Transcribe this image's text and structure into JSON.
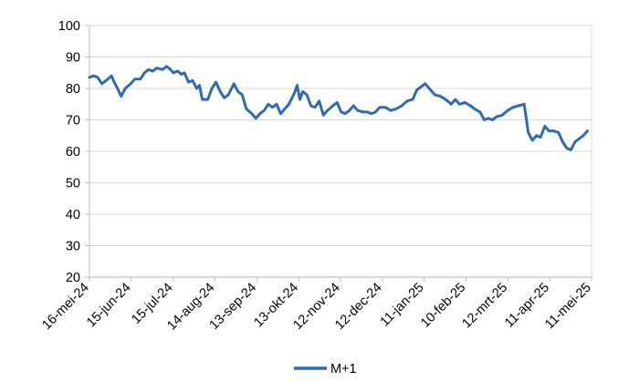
{
  "chart_data": {
    "type": "line",
    "title": "",
    "xlabel": "",
    "ylabel": "",
    "ylim": [
      20,
      100
    ],
    "yticks": [
      20,
      30,
      40,
      50,
      60,
      70,
      80,
      90,
      100
    ],
    "grid": "horizontal",
    "legend_position": "bottom",
    "colors": {
      "series": "#2e6bb0",
      "grid": "#d9d9d9",
      "axis": "#bfbfbf"
    },
    "x_tick_labels": [
      "16-mei-24",
      "15-jun-24",
      "15-jul-24",
      "14-aug-24",
      "13-sep-24",
      "13-okt-24",
      "12-nov-24",
      "12-dec-24",
      "11-jan-25",
      "10-feb-25",
      "12-mrt-25",
      "11-apr-25",
      "11-mei-25"
    ],
    "x_range": [
      "2024-05-16",
      "2025-05-16"
    ],
    "series": [
      {
        "name": "M+1",
        "points": [
          [
            "2024-05-16",
            83.5
          ],
          [
            "2024-05-19",
            84.0
          ],
          [
            "2024-05-22",
            83.5
          ],
          [
            "2024-05-25",
            81.5
          ],
          [
            "2024-05-28",
            82.5
          ],
          [
            "2024-06-01",
            84.0
          ],
          [
            "2024-06-03",
            82.0
          ],
          [
            "2024-06-06",
            79.5
          ],
          [
            "2024-06-08",
            77.5
          ],
          [
            "2024-06-11",
            80.0
          ],
          [
            "2024-06-15",
            81.5
          ],
          [
            "2024-06-18",
            83.0
          ],
          [
            "2024-06-22",
            83.0
          ],
          [
            "2024-06-25",
            85.0
          ],
          [
            "2024-06-28",
            86.0
          ],
          [
            "2024-07-01",
            85.5
          ],
          [
            "2024-07-04",
            86.5
          ],
          [
            "2024-07-08",
            86.0
          ],
          [
            "2024-07-11",
            87.0
          ],
          [
            "2024-07-14",
            86.0
          ],
          [
            "2024-07-16",
            85.0
          ],
          [
            "2024-07-19",
            85.5
          ],
          [
            "2024-07-22",
            84.5
          ],
          [
            "2024-07-24",
            85.0
          ],
          [
            "2024-07-27",
            82.0
          ],
          [
            "2024-07-30",
            82.5
          ],
          [
            "2024-08-02",
            80.0
          ],
          [
            "2024-08-04",
            81.0
          ],
          [
            "2024-08-06",
            76.5
          ],
          [
            "2024-08-10",
            76.5
          ],
          [
            "2024-08-13",
            80.0
          ],
          [
            "2024-08-16",
            82.0
          ],
          [
            "2024-08-19",
            79.0
          ],
          [
            "2024-08-22",
            77.0
          ],
          [
            "2024-08-25",
            78.0
          ],
          [
            "2024-08-29",
            81.5
          ],
          [
            "2024-09-01",
            79.0
          ],
          [
            "2024-09-04",
            78.0
          ],
          [
            "2024-09-07",
            73.5
          ],
          [
            "2024-09-11",
            72.0
          ],
          [
            "2024-09-14",
            70.5
          ],
          [
            "2024-09-17",
            72.0
          ],
          [
            "2024-09-20",
            73.0
          ],
          [
            "2024-09-23",
            75.0
          ],
          [
            "2024-09-26",
            74.0
          ],
          [
            "2024-09-29",
            75.0
          ],
          [
            "2024-10-02",
            72.0
          ],
          [
            "2024-10-05",
            73.5
          ],
          [
            "2024-10-08",
            75.0
          ],
          [
            "2024-10-12",
            78.5
          ],
          [
            "2024-10-14",
            81.0
          ],
          [
            "2024-10-16",
            76.5
          ],
          [
            "2024-10-18",
            79.0
          ],
          [
            "2024-10-21",
            78.0
          ],
          [
            "2024-10-24",
            74.5
          ],
          [
            "2024-10-27",
            74.0
          ],
          [
            "2024-10-30",
            76.0
          ],
          [
            "2024-11-02",
            71.5
          ],
          [
            "2024-11-05",
            73.0
          ],
          [
            "2024-11-09",
            74.5
          ],
          [
            "2024-11-12",
            75.5
          ],
          [
            "2024-11-15",
            72.5
          ],
          [
            "2024-11-18",
            72.0
          ],
          [
            "2024-11-21",
            73.0
          ],
          [
            "2024-11-24",
            74.5
          ],
          [
            "2024-11-27",
            73.0
          ],
          [
            "2024-12-01",
            72.5
          ],
          [
            "2024-12-04",
            72.5
          ],
          [
            "2024-12-07",
            72.0
          ],
          [
            "2024-12-10",
            72.5
          ],
          [
            "2024-12-13",
            74.0
          ],
          [
            "2024-12-17",
            74.0
          ],
          [
            "2024-12-21",
            73.0
          ],
          [
            "2024-12-25",
            73.5
          ],
          [
            "2024-12-29",
            74.5
          ],
          [
            "2025-01-02",
            76.0
          ],
          [
            "2025-01-06",
            76.5
          ],
          [
            "2025-01-09",
            79.5
          ],
          [
            "2025-01-12",
            80.5
          ],
          [
            "2025-01-15",
            81.5
          ],
          [
            "2025-01-18",
            80.0
          ],
          [
            "2025-01-22",
            78.0
          ],
          [
            "2025-01-26",
            77.5
          ],
          [
            "2025-01-30",
            76.5
          ],
          [
            "2025-02-03",
            75.0
          ],
          [
            "2025-02-06",
            76.5
          ],
          [
            "2025-02-09",
            75.0
          ],
          [
            "2025-02-13",
            75.5
          ],
          [
            "2025-02-17",
            74.5
          ],
          [
            "2025-02-20",
            73.5
          ],
          [
            "2025-02-24",
            72.5
          ],
          [
            "2025-02-27",
            70.0
          ],
          [
            "2025-03-02",
            70.5
          ],
          [
            "2025-03-05",
            70.0
          ],
          [
            "2025-03-08",
            71.0
          ],
          [
            "2025-03-12",
            71.5
          ],
          [
            "2025-03-16",
            73.0
          ],
          [
            "2025-03-20",
            74.0
          ],
          [
            "2025-03-24",
            74.5
          ],
          [
            "2025-03-28",
            75.0
          ],
          [
            "2025-03-31",
            66.0
          ],
          [
            "2025-04-03",
            63.5
          ],
          [
            "2025-04-06",
            65.0
          ],
          [
            "2025-04-09",
            64.5
          ],
          [
            "2025-04-12",
            68.0
          ],
          [
            "2025-04-15",
            66.5
          ],
          [
            "2025-04-18",
            66.5
          ],
          [
            "2025-04-22",
            66.0
          ],
          [
            "2025-04-25",
            63.0
          ],
          [
            "2025-04-28",
            61.0
          ],
          [
            "2025-05-01",
            60.5
          ],
          [
            "2025-05-04",
            63.0
          ],
          [
            "2025-05-07",
            64.0
          ],
          [
            "2025-05-10",
            65.0
          ],
          [
            "2025-05-13",
            66.5
          ]
        ]
      }
    ]
  }
}
